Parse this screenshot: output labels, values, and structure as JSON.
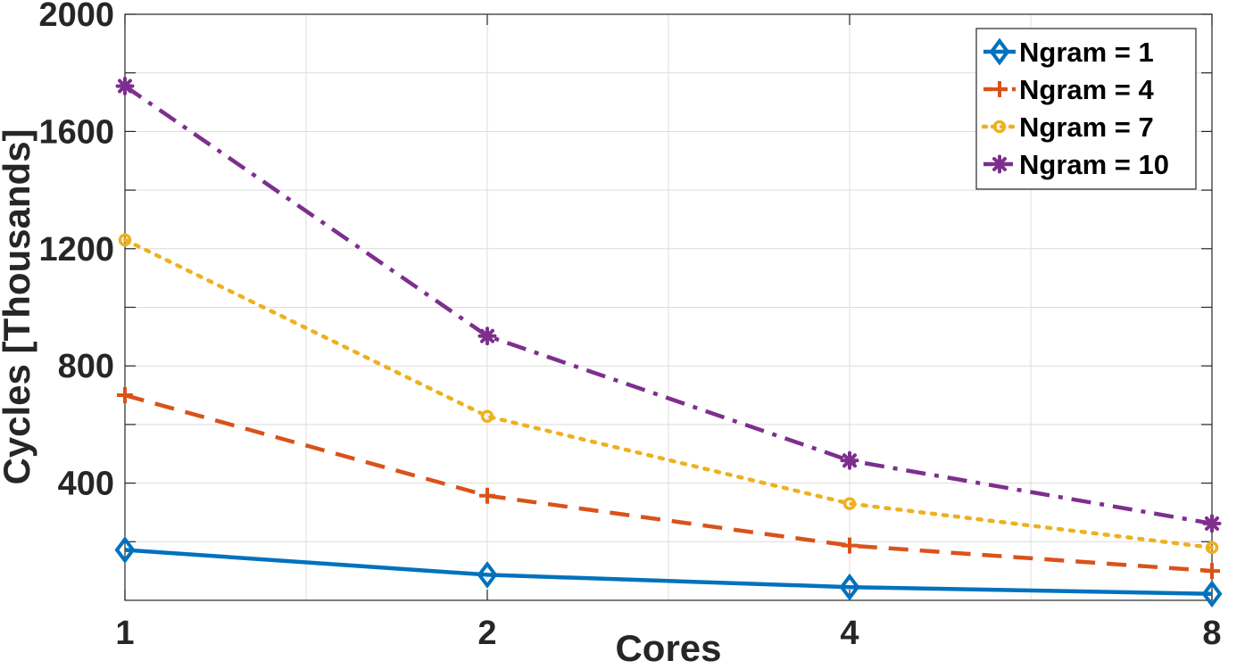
{
  "chart_data": {
    "type": "line",
    "xlabel": "Cores",
    "ylabel": "Cycles [Thousands]",
    "x": [
      1,
      2,
      4,
      8
    ],
    "x_scale": "log2",
    "x_tick_labels": [
      "1",
      "2",
      "4",
      "8"
    ],
    "ylim": [
      0,
      2000
    ],
    "y_ticks": [
      400,
      800,
      1200,
      1600,
      2000
    ],
    "y_tick_labels": [
      "400",
      "800",
      "1200",
      "1600",
      "2000"
    ],
    "grid": true,
    "legend_position": "top-right",
    "series": [
      {
        "name": "Ngram = 1",
        "color": "#0072BD",
        "line_style": "solid",
        "marker": "diamond",
        "values": [
          172,
          87,
          45,
          22
        ]
      },
      {
        "name": "Ngram = 4",
        "color": "#D95319",
        "line_style": "dashed",
        "marker": "plus",
        "values": [
          700,
          357,
          187,
          100
        ]
      },
      {
        "name": "Ngram = 7",
        "color": "#EDB120",
        "line_style": "dotted",
        "marker": "circle",
        "values": [
          1230,
          628,
          330,
          180
        ]
      },
      {
        "name": "Ngram = 10",
        "color": "#7E2F8E",
        "line_style": "dashdot",
        "marker": "asterisk",
        "values": [
          1755,
          902,
          477,
          262
        ]
      }
    ]
  }
}
